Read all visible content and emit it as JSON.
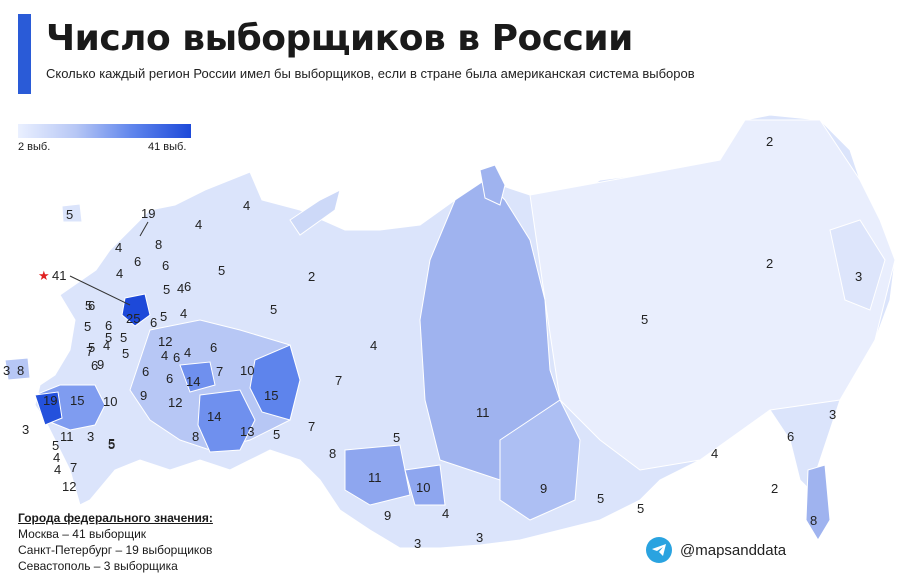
{
  "header": {
    "title": "Число выборщиков в России",
    "subtitle": "Сколько каждый регион России имел бы выборщиков, если в стране была американская система выборов"
  },
  "legend": {
    "min_label": "2 выб.",
    "max_label": "41 выб.",
    "colors": [
      "#eaf0ff",
      "#b7c7f5",
      "#5e84ec",
      "#1d49d9"
    ]
  },
  "regions": [
    {
      "id": "chukotka",
      "value": "2"
    },
    {
      "id": "magadan",
      "value": "2"
    },
    {
      "id": "kamchatka",
      "value": "3"
    },
    {
      "id": "yakutia",
      "value": "5"
    },
    {
      "id": "krasnoyarsk",
      "value": "11"
    },
    {
      "id": "tyumen-north",
      "value": "4"
    },
    {
      "id": "nenets",
      "value": "2"
    },
    {
      "id": "komi",
      "value": "5"
    },
    {
      "id": "arkhangelsk",
      "value": "5"
    },
    {
      "id": "murmansk",
      "value": "4"
    },
    {
      "id": "karelia",
      "value": "4"
    },
    {
      "id": "kaliningrad",
      "value": "5"
    },
    {
      "id": "moscow-oblast",
      "value": "25"
    },
    {
      "id": "krasnodar",
      "value": "19"
    },
    {
      "id": "rostov",
      "value": "15"
    },
    {
      "id": "volgograd",
      "value": "10"
    },
    {
      "id": "bashkortostan",
      "value": "14"
    },
    {
      "id": "tatarstan",
      "value": "14"
    },
    {
      "id": "sverdlovsk",
      "value": "15"
    },
    {
      "id": "chelyabinsk",
      "value": "13"
    },
    {
      "id": "perm",
      "value": "10"
    },
    {
      "id": "khanty-mansi",
      "value": "7"
    },
    {
      "id": "tomsk",
      "value": "5"
    },
    {
      "id": "novosibirsk",
      "value": "11"
    },
    {
      "id": "altai-krai",
      "value": "9"
    },
    {
      "id": "kemerovo",
      "value": "10"
    },
    {
      "id": "irkutsk",
      "value": "9"
    },
    {
      "id": "zabaykalsky",
      "value": "5"
    },
    {
      "id": "amur",
      "value": "5"
    },
    {
      "id": "khabarovsk",
      "value": "4"
    },
    {
      "id": "primorye",
      "value": "8"
    },
    {
      "id": "sakhalin",
      "value": "6"
    },
    {
      "id": "jewish-ao",
      "value": "2"
    },
    {
      "id": "kurils",
      "value": "3"
    },
    {
      "id": "tyva",
      "value": "3"
    },
    {
      "id": "buryatia",
      "value": "3"
    },
    {
      "id": "khakassia",
      "value": "4"
    },
    {
      "id": "omsk",
      "value": "8"
    },
    {
      "id": "tyumen",
      "value": "7"
    },
    {
      "id": "kurgan",
      "value": "5"
    },
    {
      "id": "orenburg",
      "value": "8"
    },
    {
      "id": "samara",
      "value": "12"
    },
    {
      "id": "saratov",
      "value": "9"
    },
    {
      "id": "nizhny-novgorod",
      "value": "12"
    },
    {
      "id": "dagestan",
      "value": "12"
    },
    {
      "id": "stavropol",
      "value": "11"
    },
    {
      "id": "crimea",
      "value": "8"
    },
    {
      "id": "sevastopol-map",
      "value": "3"
    },
    {
      "id": "adygea",
      "value": "3"
    },
    {
      "id": "kalmykia",
      "value": "3"
    },
    {
      "id": "astrakhan",
      "value": "5"
    },
    {
      "id": "udmurtia",
      "value": "7"
    },
    {
      "id": "kirov",
      "value": "6"
    },
    {
      "id": "vologda",
      "value": "5"
    },
    {
      "id": "leningrad",
      "value": "6"
    },
    {
      "id": "pskov",
      "value": "4"
    },
    {
      "id": "novgorod",
      "value": "4"
    },
    {
      "id": "tver",
      "value": "6"
    },
    {
      "id": "yaroslavl",
      "value": "6"
    },
    {
      "id": "kostroma",
      "value": "4"
    },
    {
      "id": "ivanovo",
      "value": "5"
    },
    {
      "id": "vladimir",
      "value": "6"
    },
    {
      "id": "ryazan",
      "value": "5"
    },
    {
      "id": "tula",
      "value": "6"
    },
    {
      "id": "kaluga",
      "value": "5"
    },
    {
      "id": "smolensk",
      "value": "5"
    },
    {
      "id": "bryansk",
      "value": "5"
    },
    {
      "id": "oryol",
      "value": "4"
    },
    {
      "id": "kursk",
      "value": "6"
    },
    {
      "id": "belgorod",
      "value": "7"
    },
    {
      "id": "voronezh",
      "value": "9"
    },
    {
      "id": "lipetsk",
      "value": "5"
    },
    {
      "id": "tambov",
      "value": "5"
    },
    {
      "id": "penza",
      "value": "6"
    },
    {
      "id": "mordovia",
      "value": "4"
    },
    {
      "id": "chuvashia",
      "value": "6"
    },
    {
      "id": "mari-el",
      "value": "4"
    },
    {
      "id": "ulyanovsk",
      "value": "6"
    },
    {
      "id": "kabardino",
      "value": "5"
    },
    {
      "id": "north-ossetia",
      "value": "4"
    },
    {
      "id": "chechnya",
      "value": "7"
    },
    {
      "id": "ingushetia",
      "value": "4"
    },
    {
      "id": "karachay",
      "value": "5"
    },
    {
      "id": "north-extra",
      "value": "4"
    },
    {
      "id": "spb-callout",
      "value": "19"
    },
    {
      "id": "spb-area",
      "value": "8"
    },
    {
      "id": "moscow-callout",
      "value": "41"
    },
    {
      "id": "volga-extra",
      "value": "6"
    }
  ],
  "cities": {
    "heading": "Города федерального значения:",
    "lines": [
      "Москва – 41 выборщик",
      "Санкт-Петербург – 19 выборщиков",
      "Севастополь – 3 выборщика"
    ]
  },
  "brand": {
    "handle": "@mapsanddata",
    "icon": "telegram-icon"
  }
}
